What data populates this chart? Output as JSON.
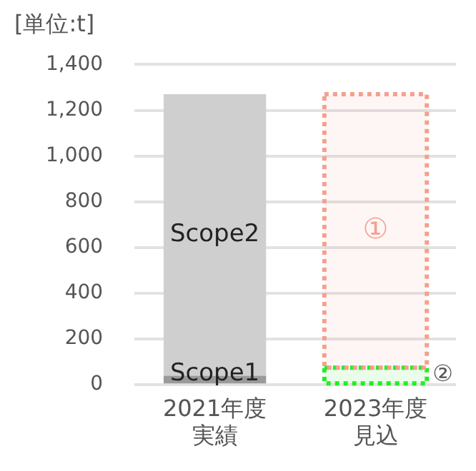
{
  "chart_data": {
    "type": "bar",
    "title": "[単位:t]",
    "categories": [
      "2021年度実績",
      "2023年度見込"
    ],
    "stacked": true,
    "ylim": [
      0,
      1400
    ],
    "yticks": [
      0,
      200,
      400,
      600,
      800,
      {
        "value": 1000,
        "label": "1,000"
      },
      {
        "value": 1200,
        "label": "1,200"
      },
      {
        "value": 1400,
        "label": "1,400"
      }
    ],
    "grid": "y",
    "legend": false,
    "series": [
      {
        "name": "Scope1",
        "color": "#9a9a9a",
        "values": [
          40,
          null
        ]
      },
      {
        "name": "Scope2",
        "color": "#cfcfcf",
        "values": [
          1230,
          null
        ]
      },
      {
        "name": "②",
        "color": "#22ee22",
        "line_style": "dotted",
        "values": [
          null,
          75
        ]
      },
      {
        "name": "①",
        "color": "#f4a090",
        "line_style": "dotted",
        "values": [
          null,
          1195
        ]
      }
    ]
  }
}
